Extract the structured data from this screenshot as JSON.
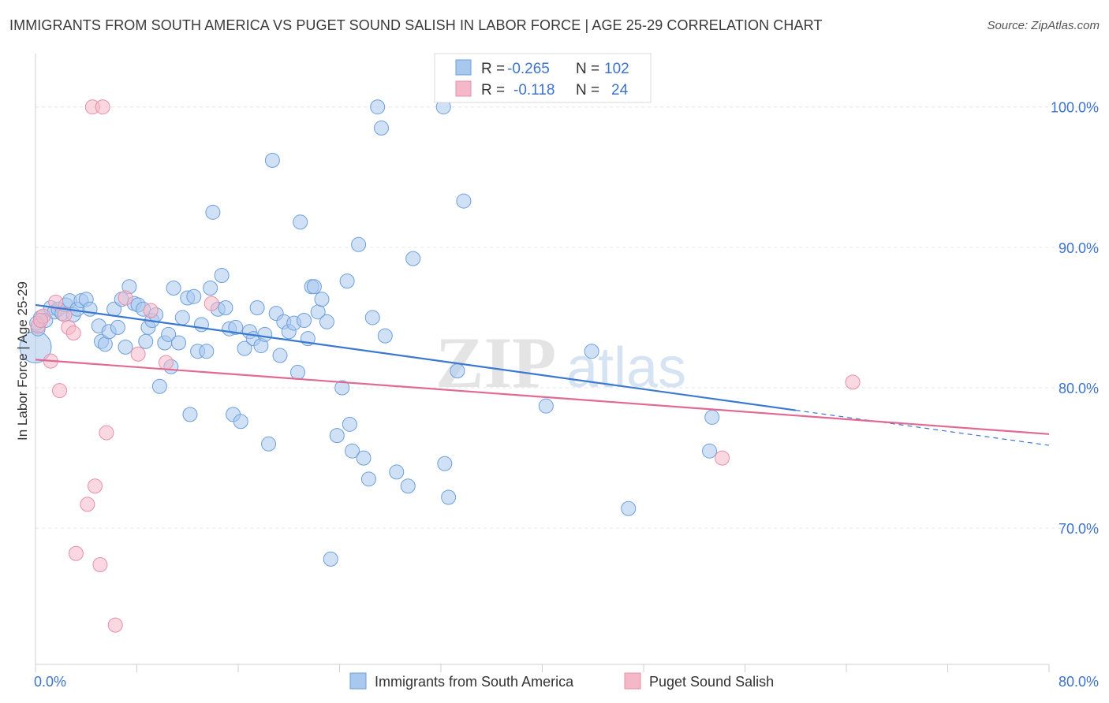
{
  "header": {
    "title": "IMMIGRANTS FROM SOUTH AMERICA VS PUGET SOUND SALISH IN LABOR FORCE | AGE 25-29 CORRELATION CHART",
    "source": "Source: ZipAtlas.com"
  },
  "watermark": {
    "zip": "ZIP",
    "atlas": "atlas"
  },
  "legend": {
    "rows": [
      {
        "r_label": "R =",
        "r_value": "-0.265",
        "n_label": "N =",
        "n_value": "102",
        "color": "#a9c8ee"
      },
      {
        "r_label": "R =",
        "r_value": "-0.118",
        "n_label": "N =",
        "n_value": "24",
        "color": "#f4b8c8"
      }
    ]
  },
  "chart_data": {
    "type": "scatter",
    "title": "IMMIGRANTS FROM SOUTH AMERICA VS PUGET SOUND SALISH IN LABOR FORCE | AGE 25-29 CORRELATION CHART",
    "xlabel": "",
    "ylabel": "In Labor Force | Age 25-29",
    "xlim": [
      0,
      80
    ],
    "ylim": [
      60.3,
      103.8
    ],
    "x_ticks": [
      "0.0%",
      "80.0%"
    ],
    "y_ticks": [
      {
        "value": 100,
        "label": "100.0%"
      },
      {
        "value": 90,
        "label": "90.0%"
      },
      {
        "value": 80,
        "label": "80.0%"
      },
      {
        "value": 70,
        "label": "70.0%"
      }
    ],
    "grid": true,
    "legend_position": "top-center",
    "series": [
      {
        "name": "Immigrants from South America",
        "color": "#a9c8ee",
        "stroke": "#6d9fdc",
        "trend": {
          "x0": 0,
          "y0": 85.9,
          "x1": 60,
          "y1": 78.4,
          "dash_to_x": 80,
          "dash_to_y": 75.9,
          "color": "#3b78cf"
        },
        "points": [
          [
            0.0,
            82.9
          ],
          [
            0.2,
            84.2
          ],
          [
            0.4,
            85.0
          ],
          [
            0.8,
            84.8
          ],
          [
            1.2,
            85.7
          ],
          [
            1.5,
            85.4
          ],
          [
            1.8,
            85.6
          ],
          [
            2.1,
            85.3
          ],
          [
            2.4,
            85.9
          ],
          [
            2.7,
            86.2
          ],
          [
            3.0,
            85.2
          ],
          [
            3.3,
            85.6
          ],
          [
            3.6,
            86.2
          ],
          [
            4.0,
            86.3
          ],
          [
            4.3,
            85.6
          ],
          [
            5.0,
            84.4
          ],
          [
            5.2,
            83.3
          ],
          [
            5.5,
            83.1
          ],
          [
            5.8,
            84.0
          ],
          [
            6.2,
            85.6
          ],
          [
            6.5,
            84.3
          ],
          [
            6.8,
            86.3
          ],
          [
            7.1,
            82.9
          ],
          [
            7.4,
            87.2
          ],
          [
            7.8,
            86.0
          ],
          [
            8.1,
            85.9
          ],
          [
            8.5,
            85.6
          ],
          [
            8.7,
            83.3
          ],
          [
            8.9,
            84.3
          ],
          [
            9.2,
            84.8
          ],
          [
            9.5,
            85.2
          ],
          [
            9.8,
            80.1
          ],
          [
            10.2,
            83.2
          ],
          [
            10.5,
            83.8
          ],
          [
            10.7,
            81.5
          ],
          [
            10.9,
            87.1
          ],
          [
            11.3,
            83.2
          ],
          [
            11.6,
            85.0
          ],
          [
            12.0,
            86.4
          ],
          [
            12.2,
            78.1
          ],
          [
            12.5,
            86.5
          ],
          [
            12.8,
            82.6
          ],
          [
            13.1,
            84.5
          ],
          [
            13.5,
            82.6
          ],
          [
            13.8,
            87.1
          ],
          [
            14.0,
            92.5
          ],
          [
            14.4,
            85.6
          ],
          [
            14.7,
            88.0
          ],
          [
            15.0,
            85.7
          ],
          [
            15.3,
            84.2
          ],
          [
            15.6,
            78.1
          ],
          [
            15.8,
            84.3
          ],
          [
            16.2,
            77.6
          ],
          [
            16.5,
            82.8
          ],
          [
            16.9,
            84.0
          ],
          [
            17.2,
            83.5
          ],
          [
            17.5,
            85.7
          ],
          [
            17.8,
            83.0
          ],
          [
            18.1,
            83.8
          ],
          [
            18.4,
            76.0
          ],
          [
            18.7,
            96.2
          ],
          [
            19.0,
            85.3
          ],
          [
            19.3,
            82.3
          ],
          [
            19.6,
            84.7
          ],
          [
            20.0,
            84.0
          ],
          [
            20.4,
            84.6
          ],
          [
            20.7,
            81.1
          ],
          [
            20.9,
            91.8
          ],
          [
            21.2,
            84.8
          ],
          [
            21.5,
            83.5
          ],
          [
            21.8,
            87.2
          ],
          [
            22.0,
            87.2
          ],
          [
            22.3,
            85.4
          ],
          [
            22.6,
            86.3
          ],
          [
            23.0,
            84.7
          ],
          [
            23.3,
            67.8
          ],
          [
            23.8,
            76.6
          ],
          [
            24.2,
            80.0
          ],
          [
            24.6,
            87.6
          ],
          [
            24.8,
            77.4
          ],
          [
            25.0,
            75.5
          ],
          [
            25.5,
            90.2
          ],
          [
            25.9,
            75.0
          ],
          [
            26.3,
            73.5
          ],
          [
            26.6,
            85.0
          ],
          [
            27.0,
            100.0
          ],
          [
            27.3,
            98.5
          ],
          [
            27.6,
            83.7
          ],
          [
            28.5,
            74.0
          ],
          [
            29.4,
            73.0
          ],
          [
            29.8,
            89.2
          ],
          [
            32.2,
            100.0
          ],
          [
            32.3,
            74.6
          ],
          [
            32.6,
            72.2
          ],
          [
            33.3,
            81.2
          ],
          [
            33.8,
            93.3
          ],
          [
            40.3,
            78.7
          ],
          [
            43.9,
            82.6
          ],
          [
            46.8,
            71.4
          ],
          [
            53.2,
            75.5
          ],
          [
            53.4,
            77.9
          ],
          [
            0.1,
            84.6
          ]
        ]
      },
      {
        "name": "Puget Sound Salish",
        "color": "#f4b8c8",
        "stroke": "#e88fa8",
        "trend": {
          "x0": 0,
          "y0": 82.0,
          "x1": 80,
          "y1": 76.7,
          "color": "#e06a92"
        },
        "points": [
          [
            0.2,
            84.4
          ],
          [
            0.6,
            85.1
          ],
          [
            1.2,
            81.9
          ],
          [
            1.6,
            86.1
          ],
          [
            1.9,
            79.8
          ],
          [
            2.3,
            85.2
          ],
          [
            2.6,
            84.3
          ],
          [
            3.0,
            83.9
          ],
          [
            3.2,
            68.2
          ],
          [
            4.1,
            71.7
          ],
          [
            4.5,
            100.0
          ],
          [
            4.7,
            73.0
          ],
          [
            5.1,
            67.4
          ],
          [
            5.3,
            100.0
          ],
          [
            5.6,
            76.8
          ],
          [
            6.3,
            63.1
          ],
          [
            7.1,
            86.4
          ],
          [
            8.1,
            82.4
          ],
          [
            9.1,
            85.5
          ],
          [
            10.3,
            81.8
          ],
          [
            13.9,
            86.0
          ],
          [
            54.2,
            75.0
          ],
          [
            64.5,
            80.4
          ],
          [
            0.4,
            84.8
          ]
        ]
      }
    ]
  }
}
